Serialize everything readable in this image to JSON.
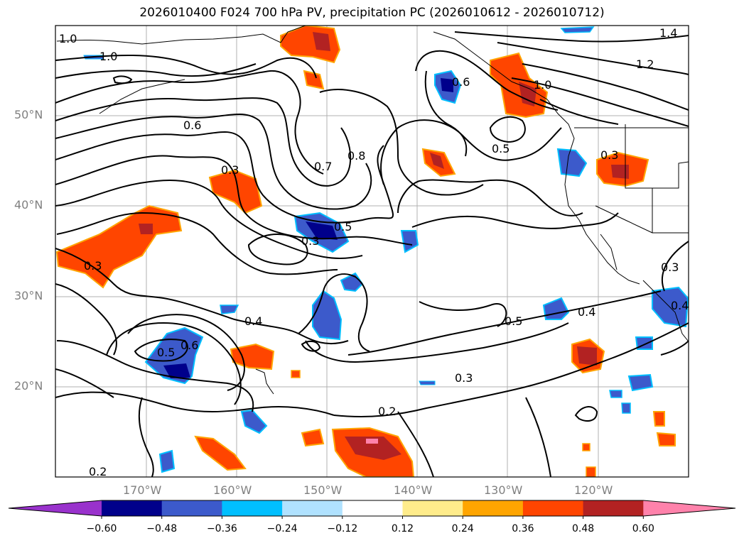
{
  "title": "2026010400 F024 700 hPa PV, precipitation PC (2026010612 - 2026010712)",
  "axes": {
    "lat_labels": [
      "50°N",
      "40°N",
      "30°N",
      "20°N"
    ],
    "lon_labels": [
      "170°W",
      "160°W",
      "150°W",
      "140°W",
      "130°W",
      "120°W"
    ]
  },
  "contour_labels": [
    "1.0",
    "1.0",
    "0.6",
    "0.3",
    "0.3",
    "0.7",
    "0.8",
    "0.6",
    "0.5",
    "0.5",
    "0.3",
    "0.4",
    "0.5",
    "0.6",
    "0.2",
    "0.3",
    "0.5",
    "0.4",
    "0.2",
    "1.0",
    "1.2",
    "1.4",
    "0.3",
    "0.3",
    "0.4"
  ],
  "colorbar": {
    "ticks": [
      "−0.60",
      "−0.48",
      "−0.36",
      "−0.24",
      "−0.12",
      "0.12",
      "0.24",
      "0.36",
      "0.48",
      "0.60"
    ],
    "colors": [
      "#9932cc",
      "#00008b",
      "#3c5acb",
      "#00bfff",
      "#b0e2ff",
      "#ffffff",
      "#ffec8b",
      "#ffa500",
      "#ff4500",
      "#b22222",
      "#ff82ab"
    ]
  }
}
